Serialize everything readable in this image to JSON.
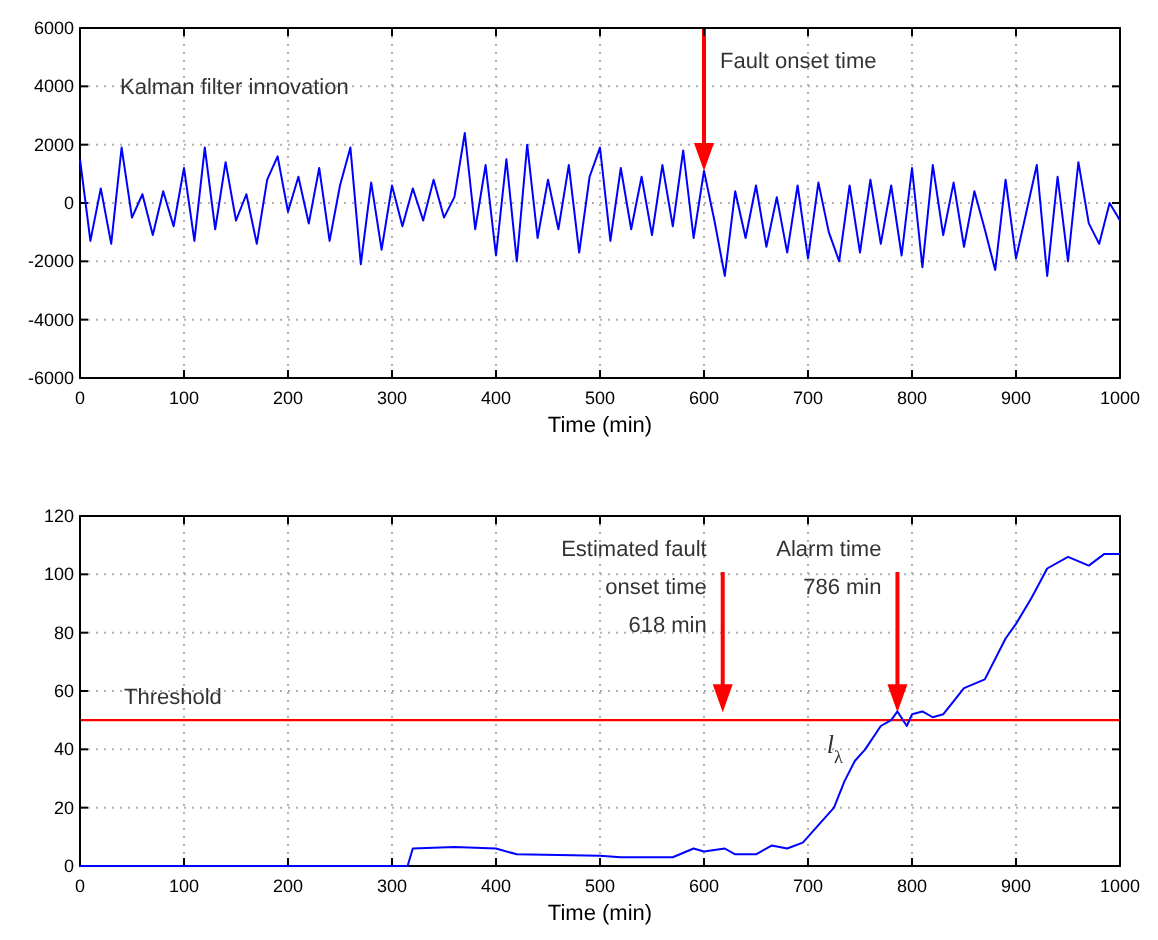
{
  "chart_data": [
    {
      "type": "line",
      "xlabel": "Time (min)",
      "xlim": [
        0,
        1000
      ],
      "xticks": [
        0,
        100,
        200,
        300,
        400,
        500,
        600,
        700,
        800,
        900,
        1000
      ],
      "ylim": [
        -6000,
        6000
      ],
      "yticks": [
        -6000,
        -4000,
        -2000,
        0,
        2000,
        4000,
        6000
      ],
      "grid": true,
      "ref_lines": [
        {
          "axis": "x",
          "value": 600,
          "label": "Fault onset time",
          "color": "#ff0000"
        }
      ],
      "series": [
        {
          "name": "Kalman filter innovation",
          "color": "#0000ff",
          "x": [
            0,
            10,
            20,
            30,
            40,
            50,
            60,
            70,
            80,
            90,
            100,
            110,
            120,
            130,
            140,
            150,
            160,
            170,
            180,
            190,
            200,
            210,
            220,
            230,
            240,
            250,
            260,
            270,
            280,
            290,
            300,
            310,
            320,
            330,
            340,
            350,
            360,
            370,
            380,
            390,
            400,
            410,
            420,
            430,
            440,
            450,
            460,
            470,
            480,
            490,
            500,
            510,
            520,
            530,
            540,
            550,
            560,
            570,
            580,
            590,
            600,
            610,
            620,
            630,
            640,
            650,
            660,
            670,
            680,
            690,
            700,
            710,
            720,
            730,
            740,
            750,
            760,
            770,
            780,
            790,
            800,
            810,
            820,
            830,
            840,
            850,
            860,
            870,
            880,
            890,
            900,
            910,
            920,
            930,
            940,
            950,
            960,
            970,
            980,
            990,
            1000
          ],
          "values": [
            1500,
            -1300,
            500,
            -1400,
            1900,
            -500,
            300,
            -1100,
            400,
            -800,
            1200,
            -1300,
            1900,
            -900,
            1400,
            -600,
            300,
            -1400,
            800,
            1600,
            -300,
            900,
            -700,
            1200,
            -1300,
            600,
            1900,
            -2100,
            700,
            -1600,
            600,
            -800,
            500,
            -600,
            800,
            -500,
            200,
            2400,
            -900,
            1300,
            -1800,
            1500,
            -2000,
            2000,
            -1200,
            800,
            -900,
            1300,
            -1700,
            900,
            1900,
            -1300,
            1200,
            -900,
            900,
            -1100,
            1300,
            -800,
            1800,
            -1200,
            1100,
            -600,
            -2500,
            400,
            -1200,
            600,
            -1500,
            200,
            -1700,
            600,
            -1900,
            700,
            -1000,
            -2000,
            600,
            -1700,
            800,
            -1400,
            600,
            -1800,
            1200,
            -2200,
            1300,
            -1100,
            700,
            -1500,
            400,
            -900,
            -2300,
            800,
            -1900,
            -300,
            1300,
            -2500,
            900,
            -2000,
            1400,
            -700,
            -1400,
            0,
            -600
          ]
        }
      ]
    },
    {
      "type": "line",
      "xlabel": "Time (min)",
      "xlim": [
        0,
        1000
      ],
      "xticks": [
        0,
        100,
        200,
        300,
        400,
        500,
        600,
        700,
        800,
        900,
        1000
      ],
      "ylim": [
        0,
        120
      ],
      "yticks": [
        0,
        20,
        40,
        60,
        80,
        100,
        120
      ],
      "grid": true,
      "ref_lines": [
        {
          "axis": "y",
          "value": 50,
          "label": "Threshold",
          "color": "#ff0000"
        },
        {
          "axis": "x",
          "value": 618,
          "label": "Estimated fault\nonset time\n618 min",
          "color": "#ff0000"
        },
        {
          "axis": "x",
          "value": 786,
          "label": "Alarm time\n786 min",
          "color": "#ff0000"
        }
      ],
      "series": [
        {
          "name": "l$_{λ}$",
          "color": "#0000ff",
          "x": [
            0,
            315,
            320,
            360,
            400,
            420,
            500,
            520,
            570,
            590,
            600,
            620,
            630,
            650,
            665,
            680,
            695,
            710,
            725,
            735,
            745,
            755,
            770,
            780,
            786,
            795,
            800,
            810,
            820,
            830,
            850,
            870,
            890,
            900,
            915,
            930,
            950,
            970,
            985,
            1000
          ],
          "values": [
            0,
            0,
            6,
            6.5,
            6,
            4,
            3.5,
            3,
            3,
            6,
            5,
            6,
            4,
            4,
            7,
            6,
            8,
            14,
            20,
            29,
            36,
            40,
            48,
            50,
            53,
            48,
            52,
            53,
            51,
            52,
            61,
            64,
            78,
            83,
            92,
            102,
            106,
            103,
            107,
            107
          ]
        }
      ]
    }
  ]
}
